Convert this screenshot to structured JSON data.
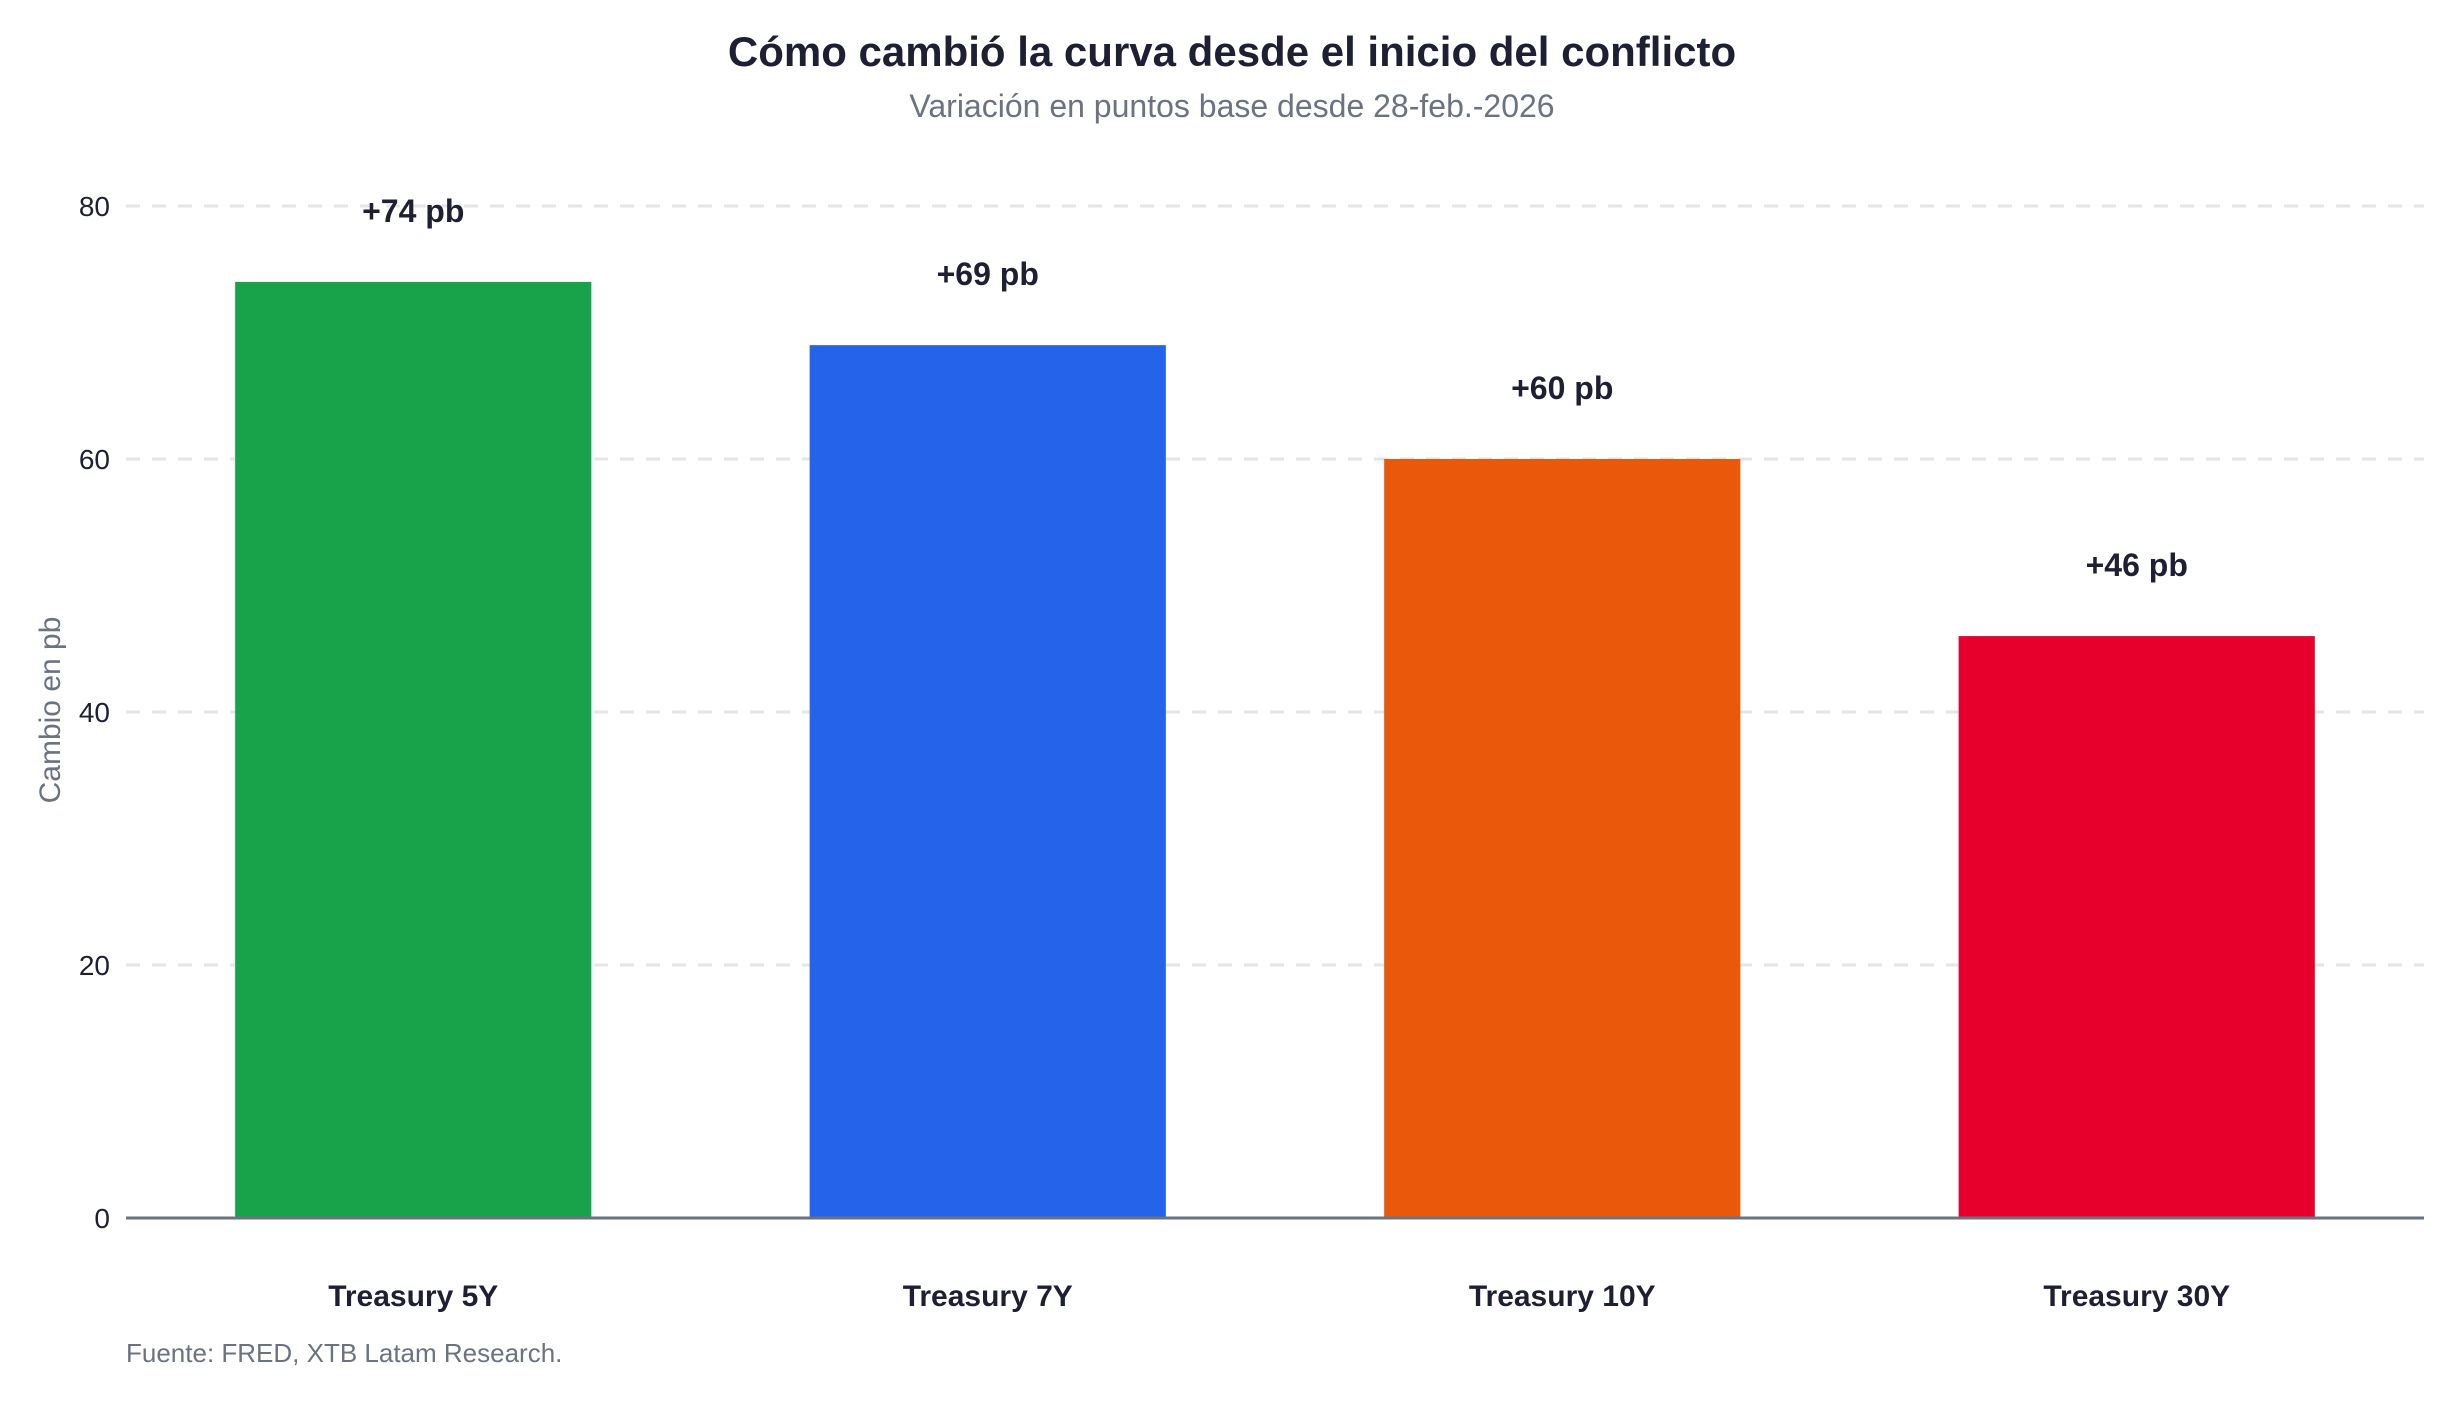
{
  "chart_data": {
    "type": "bar",
    "title": "Cómo cambió la curva desde el inicio del conflicto",
    "subtitle": "Variación en puntos base desde 28-feb.-2026",
    "ylabel": "Cambio en pb",
    "xlabel": "",
    "ylim": [
      0,
      80
    ],
    "yticks": [
      0,
      20,
      40,
      60,
      80
    ],
    "grid": true,
    "categories": [
      "Treasury 5Y",
      "Treasury 7Y",
      "Treasury 10Y",
      "Treasury 30Y"
    ],
    "values": [
      74,
      69,
      60,
      46
    ],
    "data_labels": [
      "+74 pb",
      "+69 pb",
      "+60 pb",
      "+46 pb"
    ],
    "colors": [
      "#18a34a",
      "#2563eb",
      "#ea580c",
      "#e8002d"
    ],
    "source": "Fuente: FRED, XTB Latam Research."
  }
}
